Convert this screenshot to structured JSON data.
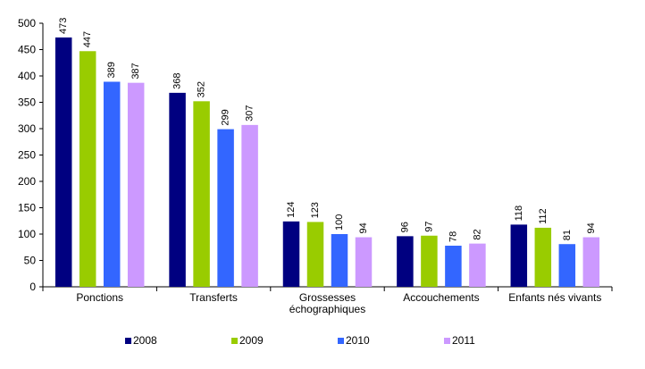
{
  "chart_data": {
    "type": "bar",
    "categories": [
      [
        "Ponctions"
      ],
      [
        "Transferts"
      ],
      [
        "Grossesses",
        "échographiques"
      ],
      [
        "Accouchements"
      ],
      [
        "Enfants nés vivants"
      ]
    ],
    "series": [
      {
        "name": "2008",
        "color": "#000080",
        "values": [
          473,
          368,
          124,
          96,
          118
        ]
      },
      {
        "name": "2009",
        "color": "#99CC00",
        "values": [
          447,
          352,
          123,
          97,
          112
        ]
      },
      {
        "name": "2010",
        "color": "#3366FF",
        "values": [
          389,
          299,
          100,
          78,
          81
        ]
      },
      {
        "name": "2011",
        "color": "#CC99FF",
        "values": [
          387,
          307,
          94,
          82,
          94
        ]
      }
    ],
    "ylim": [
      0,
      500
    ],
    "yticks": [
      0,
      50,
      100,
      150,
      200,
      250,
      300,
      350,
      400,
      450,
      500
    ],
    "grid": false,
    "legend_position": "bottom",
    "data_labels": true
  }
}
